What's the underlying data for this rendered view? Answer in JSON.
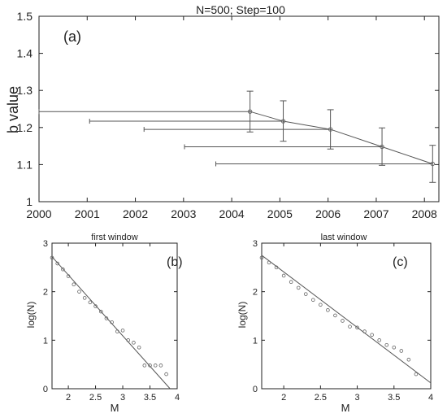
{
  "chart_data": [
    {
      "type": "scatter",
      "title": "N=500; Step=100",
      "panel_label": "(a)",
      "xlabel": "",
      "ylabel": "b value",
      "xlim": [
        2000,
        2008.3
      ],
      "ylim": [
        1.0,
        1.5
      ],
      "xticks": [
        2000,
        2001,
        2002,
        2003,
        2004,
        2005,
        2006,
        2007,
        2008
      ],
      "yticks": [
        1,
        1.1,
        1.2,
        1.3,
        1.4,
        1.5
      ],
      "ytick_labels": [
        "1",
        "1.1",
        "1.2",
        "1.3",
        "1.4",
        "1.5"
      ],
      "series": [
        {
          "points": [
            {
              "x": 2004.38,
              "y": 1.243,
              "yerr_low": 1.188,
              "yerr_high": 1.298,
              "x_start": 2000.0
            },
            {
              "x": 2005.07,
              "y": 1.217,
              "yerr_low": 1.163,
              "yerr_high": 1.272,
              "x_start": 2001.05
            },
            {
              "x": 2006.05,
              "y": 1.195,
              "yerr_low": 1.142,
              "yerr_high": 1.248,
              "x_start": 2002.18
            },
            {
              "x": 2007.12,
              "y": 1.148,
              "yerr_low": 1.098,
              "yerr_high": 1.199,
              "x_start": 2003.02
            },
            {
              "x": 2008.17,
              "y": 1.102,
              "yerr_low": 1.052,
              "yerr_high": 1.152,
              "x_start": 2003.67
            }
          ]
        }
      ],
      "colors": {
        "line": "#555555",
        "axis": "#222222"
      },
      "grid": false
    },
    {
      "type": "scatter",
      "title": "first window",
      "panel_label": "(b)",
      "xlabel": "M",
      "ylabel": "log(N)",
      "xlim": [
        1.7,
        4
      ],
      "ylim": [
        0,
        3
      ],
      "xticks": [
        2,
        2.5,
        3,
        3.5,
        4
      ],
      "xtick_labels": [
        "2",
        "2.5",
        "3",
        "3.5",
        "4"
      ],
      "yticks": [
        0,
        1,
        2,
        3
      ],
      "points": [
        [
          1.7,
          2.7
        ],
        [
          1.8,
          2.58
        ],
        [
          1.9,
          2.46
        ],
        [
          2.0,
          2.32
        ],
        [
          2.1,
          2.15
        ],
        [
          2.2,
          2.0
        ],
        [
          2.3,
          1.87
        ],
        [
          2.4,
          1.78
        ],
        [
          2.5,
          1.7
        ],
        [
          2.6,
          1.59
        ],
        [
          2.7,
          1.45
        ],
        [
          2.8,
          1.37
        ],
        [
          2.9,
          1.18
        ],
        [
          3.0,
          1.2
        ],
        [
          3.1,
          1.0
        ],
        [
          3.2,
          0.95
        ],
        [
          3.3,
          0.85
        ],
        [
          3.4,
          0.48
        ],
        [
          3.5,
          0.48
        ],
        [
          3.6,
          0.48
        ],
        [
          3.7,
          0.48
        ],
        [
          3.8,
          0.3
        ]
      ],
      "fit_line": [
        [
          1.7,
          2.72
        ],
        [
          3.87,
          0
        ]
      ]
    },
    {
      "type": "scatter",
      "title": "last window",
      "panel_label": "(c)",
      "xlabel": "M",
      "ylabel": "log(N)",
      "xlim": [
        1.7,
        4
      ],
      "ylim": [
        0,
        3
      ],
      "xticks": [
        2,
        2.5,
        3,
        3.5,
        4
      ],
      "xtick_labels": [
        "2",
        "2.5",
        "3",
        "3.5",
        "4"
      ],
      "yticks": [
        0,
        1,
        2,
        3
      ],
      "points": [
        [
          1.7,
          2.7
        ],
        [
          1.8,
          2.6
        ],
        [
          1.9,
          2.5
        ],
        [
          2.0,
          2.33
        ],
        [
          2.1,
          2.2
        ],
        [
          2.2,
          2.08
        ],
        [
          2.3,
          1.95
        ],
        [
          2.4,
          1.83
        ],
        [
          2.5,
          1.73
        ],
        [
          2.6,
          1.62
        ],
        [
          2.7,
          1.51
        ],
        [
          2.8,
          1.4
        ],
        [
          2.9,
          1.28
        ],
        [
          3.0,
          1.26
        ],
        [
          3.1,
          1.18
        ],
        [
          3.2,
          1.11
        ],
        [
          3.3,
          1.0
        ],
        [
          3.4,
          0.9
        ],
        [
          3.5,
          0.85
        ],
        [
          3.6,
          0.78
        ],
        [
          3.7,
          0.6
        ],
        [
          3.8,
          0.3
        ]
      ],
      "fit_line": [
        [
          1.7,
          2.75
        ],
        [
          4.0,
          0.12
        ]
      ]
    }
  ]
}
